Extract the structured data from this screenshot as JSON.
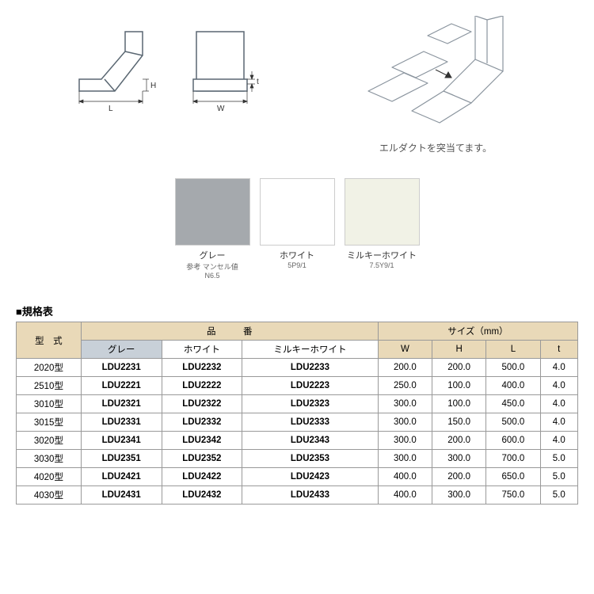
{
  "diagrams": {
    "front": {
      "dim_L": "L",
      "dim_H": "H",
      "stroke": "#5a6772",
      "fill": "#ffffff"
    },
    "side": {
      "dim_W": "W",
      "dim_t": "t",
      "stroke": "#5a6772",
      "fill": "#ffffff"
    },
    "assembly": {
      "caption": "エルダクトを突当てます。",
      "stroke": "#8a949e"
    }
  },
  "swatches": [
    {
      "label": "グレー",
      "sub1": "参考 マンセル値",
      "sub2": "N6.5",
      "color": "#a5a9ad"
    },
    {
      "label": "ホワイト",
      "sub1": "",
      "sub2": "5P9/1",
      "color": "#ffffff"
    },
    {
      "label": "ミルキーホワイト",
      "sub1": "",
      "sub2": "7.5Y9/1",
      "color": "#f1f2e6"
    }
  ],
  "spec": {
    "title": "■規格表",
    "headers": {
      "model": "型　式",
      "partno": "品　　　番",
      "size": "サイズ（mm）"
    },
    "subheaders": {
      "gray": "グレー",
      "white": "ホワイト",
      "milky": "ミルキーホワイト",
      "W": "W",
      "H": "H",
      "L": "L",
      "t": "t"
    },
    "rows": [
      {
        "model": "2020型",
        "gray": "LDU2231",
        "white": "LDU2232",
        "milky": "LDU2233",
        "W": "200.0",
        "H": "200.0",
        "L": "500.0",
        "t": "4.0"
      },
      {
        "model": "2510型",
        "gray": "LDU2221",
        "white": "LDU2222",
        "milky": "LDU2223",
        "W": "250.0",
        "H": "100.0",
        "L": "400.0",
        "t": "4.0"
      },
      {
        "model": "3010型",
        "gray": "LDU2321",
        "white": "LDU2322",
        "milky": "LDU2323",
        "W": "300.0",
        "H": "100.0",
        "L": "450.0",
        "t": "4.0"
      },
      {
        "model": "3015型",
        "gray": "LDU2331",
        "white": "LDU2332",
        "milky": "LDU2333",
        "W": "300.0",
        "H": "150.0",
        "L": "500.0",
        "t": "4.0"
      },
      {
        "model": "3020型",
        "gray": "LDU2341",
        "white": "LDU2342",
        "milky": "LDU2343",
        "W": "300.0",
        "H": "200.0",
        "L": "600.0",
        "t": "4.0"
      },
      {
        "model": "3030型",
        "gray": "LDU2351",
        "white": "LDU2352",
        "milky": "LDU2353",
        "W": "300.0",
        "H": "300.0",
        "L": "700.0",
        "t": "5.0"
      },
      {
        "model": "4020型",
        "gray": "LDU2421",
        "white": "LDU2422",
        "milky": "LDU2423",
        "W": "400.0",
        "H": "200.0",
        "L": "650.0",
        "t": "5.0"
      },
      {
        "model": "4030型",
        "gray": "LDU2431",
        "white": "LDU2432",
        "milky": "LDU2433",
        "W": "400.0",
        "H": "300.0",
        "L": "750.0",
        "t": "5.0"
      }
    ]
  }
}
